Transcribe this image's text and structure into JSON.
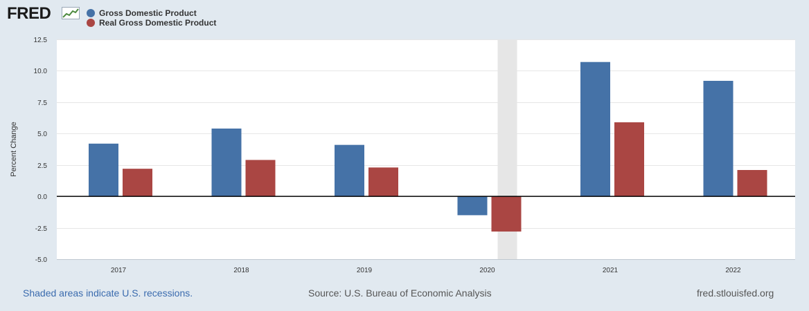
{
  "header": {
    "logo_text": "FRED",
    "logo_icon": "line-chart-icon"
  },
  "chart_data": {
    "type": "bar",
    "categories": [
      "2017",
      "2018",
      "2019",
      "2020",
      "2021",
      "2022"
    ],
    "series": [
      {
        "name": "Gross Domestic Product",
        "color": "#4572a7",
        "values": [
          4.2,
          5.4,
          4.1,
          -1.5,
          10.7,
          9.2
        ]
      },
      {
        "name": "Real Gross Domestic Product",
        "color": "#aa4643",
        "values": [
          2.2,
          2.9,
          2.3,
          -2.8,
          5.9,
          2.1
        ]
      }
    ],
    "ylabel": "Percent Change",
    "ylim": [
      -5.0,
      12.5
    ],
    "yticks": [
      "12.5",
      "10.0",
      "7.5",
      "5.0",
      "2.5",
      "0.0",
      "-2.5",
      "-5.0"
    ],
    "ytick_values": [
      12.5,
      10.0,
      7.5,
      5.0,
      2.5,
      0.0,
      -2.5,
      -5.0
    ],
    "recession_shading": {
      "category": "2020",
      "color": "#e6e6e6"
    },
    "grid": true,
    "legend_position": "top-left"
  },
  "footer": {
    "note": "Shaded areas indicate U.S. recessions.",
    "source": "Source: U.S. Bureau of Economic Analysis",
    "site": "fred.stlouisfed.org"
  }
}
